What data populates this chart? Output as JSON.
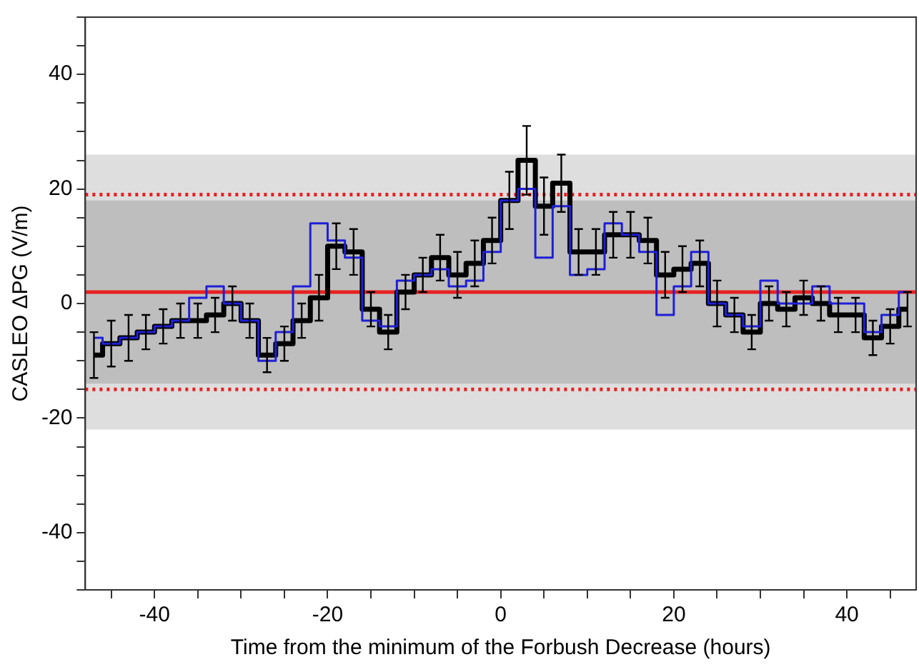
{
  "chart_data": {
    "type": "step",
    "xlabel": "Time from the minimum of the Forbush Decrease (hours)",
    "ylabel": "CASLEO ΔPG (V/m)",
    "x": [
      -47,
      -45,
      -43,
      -41,
      -39,
      -37,
      -35,
      -33,
      -31,
      -29,
      -27,
      -25,
      -23,
      -21,
      -19,
      -17,
      -15,
      -13,
      -11,
      -9,
      -7,
      -5,
      -3,
      -1,
      1,
      3,
      5,
      7,
      9,
      11,
      13,
      15,
      17,
      19,
      21,
      23,
      25,
      27,
      29,
      31,
      33,
      35,
      37,
      39,
      41,
      43,
      45,
      47
    ],
    "series": [
      {
        "color": "#000000",
        "values": [
          -9,
          -7,
          -6,
          -5,
          -4,
          -3,
          -3,
          -2,
          0,
          -3,
          -9,
          -7,
          -3,
          1,
          10,
          9,
          -1,
          -5,
          2,
          5,
          8,
          5,
          7,
          11,
          18,
          25,
          17,
          21,
          9,
          9,
          12,
          12,
          11,
          5,
          6,
          7,
          0,
          -2,
          -5,
          0,
          -1,
          1,
          0,
          -2,
          -2,
          -6,
          -4,
          -1
        ],
        "errors": [
          4,
          4,
          4,
          3,
          3,
          3,
          3,
          3,
          3,
          3,
          3,
          3,
          3,
          4,
          4,
          4,
          3,
          3,
          3,
          3,
          4,
          4,
          4,
          4,
          5,
          6,
          5,
          5,
          4,
          4,
          4,
          4,
          4,
          4,
          4,
          4,
          4,
          3,
          3,
          3,
          3,
          3,
          3,
          3,
          3,
          3,
          3,
          3
        ]
      },
      {
        "color": "#1f1fd6",
        "values": [
          -6,
          -7,
          -6,
          -5,
          -4,
          -3,
          1,
          3,
          0,
          -3,
          -10,
          -5,
          3,
          14,
          11,
          8,
          -3,
          -4,
          4,
          5,
          6,
          3,
          4,
          9,
          18,
          20,
          8,
          17,
          5,
          6,
          14,
          12,
          9,
          -2,
          3,
          9,
          0,
          -2,
          -4,
          4,
          0,
          0,
          3,
          0,
          0,
          -5,
          -2,
          2
        ]
      }
    ],
    "xlim": [
      -48,
      48
    ],
    "ylim": [
      -50,
      50
    ],
    "xticks": [
      {
        "value": -45,
        "label": null
      },
      -40,
      {
        "value": -35,
        "label": null
      },
      {
        "value": -30,
        "label": null
      },
      {
        "value": -25,
        "label": null
      },
      -20,
      {
        "value": -15,
        "label": null
      },
      {
        "value": -10,
        "label": null
      },
      {
        "value": -5,
        "label": null
      },
      0,
      {
        "value": 5,
        "label": null
      },
      {
        "value": 10,
        "label": null
      },
      {
        "value": 15,
        "label": null
      },
      20,
      {
        "value": 25,
        "label": null
      },
      {
        "value": 30,
        "label": null
      },
      {
        "value": 35,
        "label": null
      },
      40,
      {
        "value": 45,
        "label": null
      }
    ],
    "yticks": [
      {
        "value": -50,
        "label": null
      },
      {
        "value": -45,
        "label": null
      },
      -40,
      {
        "value": -35,
        "label": null
      },
      {
        "value": -30,
        "label": null
      },
      {
        "value": -25,
        "label": null
      },
      -20,
      {
        "value": -15,
        "label": null
      },
      {
        "value": -10,
        "label": null
      },
      {
        "value": -5,
        "label": null
      },
      0,
      {
        "value": 5,
        "label": null
      },
      {
        "value": 10,
        "label": null
      },
      {
        "value": 15,
        "label": null
      },
      20,
      {
        "value": 25,
        "label": null
      },
      {
        "value": 30,
        "label": null
      },
      {
        "value": 35,
        "label": null
      },
      40,
      {
        "value": 45,
        "label": null
      },
      {
        "value": 50,
        "label": null
      }
    ],
    "bands": [
      {
        "axis": "y",
        "from": -22,
        "to": 26,
        "color": "#dedede"
      },
      {
        "axis": "y",
        "from": -14,
        "to": 18,
        "color": "#bebebe"
      }
    ],
    "ref_lines": [
      {
        "axis": "y",
        "value": 2,
        "color": "#e82020",
        "line_style": "solid"
      },
      {
        "axis": "y",
        "value": 19,
        "color": "#e82020",
        "line_style": "dotted"
      },
      {
        "axis": "y",
        "value": -15,
        "color": "#e82020",
        "line_style": "dotted"
      }
    ],
    "grid": false,
    "legend": false,
    "marker": "none"
  }
}
